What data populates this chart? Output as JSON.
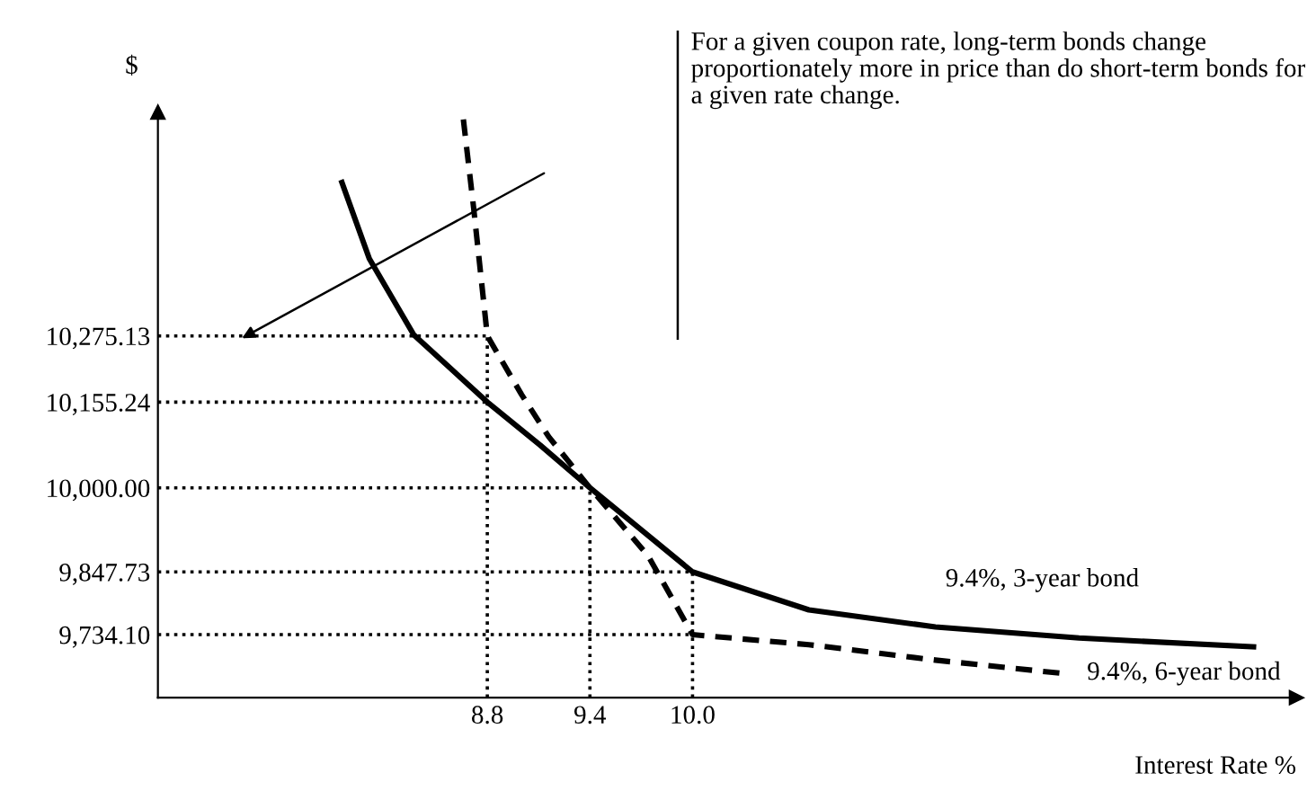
{
  "chart_data": {
    "type": "line",
    "xlabel": "Interest Rate %",
    "ylabel": "$",
    "xlim": [
      6.874,
      13.53
    ],
    "ylim": [
      9620,
      10680
    ],
    "xticks": [
      {
        "value": 8.8,
        "label": "8.8"
      },
      {
        "value": 9.4,
        "label": "9.4"
      },
      {
        "value": 10.0,
        "label": "10.0"
      }
    ],
    "yticks": [
      {
        "value": 10275.13,
        "label": "10,275.13"
      },
      {
        "value": 10155.24,
        "label": "10,155.24"
      },
      {
        "value": 10000,
        "label": "10,000.00"
      },
      {
        "value": 9847.73,
        "label": "9,847.73"
      },
      {
        "value": 9734.1,
        "label": "9,734.10"
      }
    ],
    "grid": false,
    "legend": false,
    "marker": "none",
    "series": [
      {
        "name": "9.4%, 3-year bond",
        "color": "#000000",
        "line_style": "solid",
        "x": [
          7.95,
          8.11,
          8.37,
          8.8,
          9.11,
          9.4,
          10.0,
          10.68,
          11.42,
          12.26,
          13.28
        ],
        "values": [
          10553,
          10415,
          10277,
          10155.24,
          10077,
          10000,
          9847.73,
          9779,
          9748,
          9728,
          9712
        ]
      },
      {
        "name": "9.4%, 6-year bond",
        "color": "#000000",
        "line_style": "dashed",
        "x": [
          8.66,
          8.72,
          8.8,
          9.0,
          9.16,
          9.4,
          9.74,
          10.0,
          10.68,
          11.42,
          12.16
        ],
        "values": [
          10667,
          10507,
          10275.13,
          10169,
          10092,
          10000,
          9877,
          9734.1,
          9716,
          9688,
          9664
        ]
      }
    ],
    "ref_lines": [
      {
        "axis": "y",
        "value": 10275.13,
        "line_style": "dotted"
      },
      {
        "axis": "y",
        "value": 10155.24,
        "line_style": "dotted"
      },
      {
        "axis": "y",
        "value": 10000,
        "line_style": "dotted"
      },
      {
        "axis": "y",
        "value": 9847.73,
        "line_style": "dotted"
      },
      {
        "axis": "y",
        "value": 9734.1,
        "line_style": "dotted"
      },
      {
        "axis": "x",
        "value": 8.8,
        "line_style": "dotted"
      },
      {
        "axis": "x",
        "value": 9.4,
        "line_style": "dotted"
      },
      {
        "axis": "x",
        "value": 10.0,
        "line_style": "dotted"
      }
    ],
    "annotations": [
      "For a given coupon rate, long-term bonds change proportionately more in price than do short-term bonds for a given rate change."
    ]
  }
}
